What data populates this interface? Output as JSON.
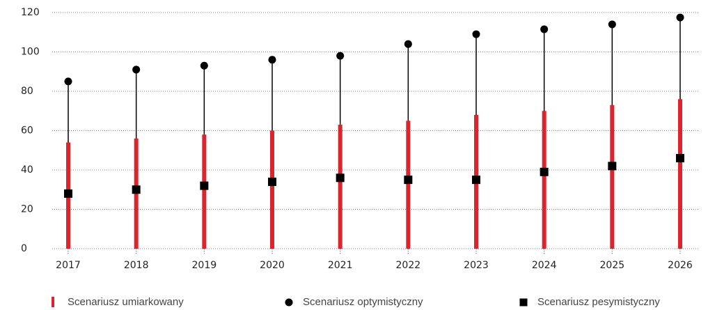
{
  "chart_data": {
    "type": "bar",
    "categories": [
      "2017",
      "2018",
      "2019",
      "2020",
      "2021",
      "2022",
      "2023",
      "2024",
      "2025",
      "2026"
    ],
    "series": [
      {
        "name": "Scenariusz umiarkowany",
        "color": "#d9262e",
        "marker": "bar",
        "values": [
          54,
          56,
          58,
          60,
          63,
          65,
          68,
          70,
          73,
          76
        ]
      },
      {
        "name": "Scenariusz optymistyczny",
        "color": "#000000",
        "marker": "circle",
        "values": [
          85,
          91,
          93,
          96,
          98,
          104,
          109,
          111.5,
          114,
          117.5
        ]
      },
      {
        "name": "Scenariusz pesymistyczny",
        "color": "#000000",
        "marker": "square",
        "values": [
          28,
          30,
          32,
          34,
          36,
          35,
          35,
          39,
          42,
          46
        ]
      }
    ],
    "ylim": [
      0,
      120
    ],
    "yticks": [
      0,
      20,
      40,
      60,
      80,
      100,
      120
    ],
    "grid": true
  }
}
